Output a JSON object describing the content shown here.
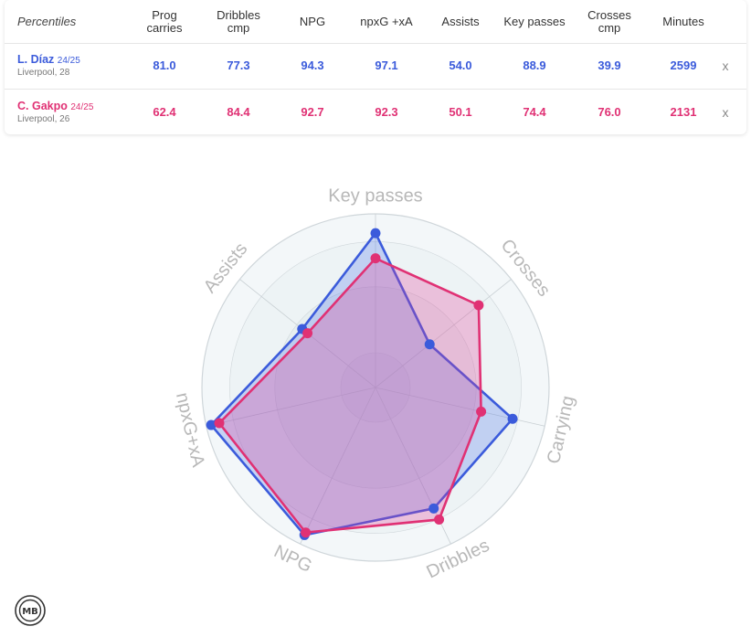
{
  "table": {
    "corner_label": "Percentiles",
    "columns": [
      {
        "line1": "Prog",
        "line2": "carries"
      },
      {
        "line1": "Dribbles",
        "line2": "cmp"
      },
      {
        "line1": "NPG",
        "line2": ""
      },
      {
        "line1": "npxG +xA",
        "line2": ""
      },
      {
        "line1": "Assists",
        "line2": ""
      },
      {
        "line1": "Key passes",
        "line2": ""
      },
      {
        "line1": "Crosses",
        "line2": "cmp"
      },
      {
        "line1": "Minutes",
        "line2": ""
      }
    ],
    "players": [
      {
        "name": "L. Díaz",
        "season": "24/25",
        "team": "Liverpool, 28",
        "values": [
          "81.0",
          "77.3",
          "94.3",
          "97.1",
          "54.0",
          "88.9",
          "39.9",
          "2599"
        ],
        "remove_label": "x",
        "color": "#3b5bdb"
      },
      {
        "name": "C. Gakpo",
        "season": "24/25",
        "team": "Liverpool, 26",
        "values": [
          "62.4",
          "84.4",
          "92.7",
          "92.3",
          "50.1",
          "74.4",
          "76.0",
          "2131"
        ],
        "remove_label": "x",
        "color": "#e03174"
      }
    ]
  },
  "chart_data": {
    "type": "radar",
    "axes": [
      "Key passes",
      "Crosses",
      "Carrying",
      "Dribbles",
      "NPG",
      "npxG+xA",
      "Assists"
    ],
    "range": [
      0,
      100
    ],
    "series": [
      {
        "name": "L. Díaz",
        "color": "#3b5bdb",
        "values": [
          88.9,
          39.9,
          81.0,
          77.3,
          94.3,
          97.1,
          54.0
        ]
      },
      {
        "name": "C. Gakpo",
        "color": "#e03174",
        "values": [
          74.4,
          76.0,
          62.4,
          84.4,
          92.7,
          92.3,
          50.1
        ]
      }
    ]
  },
  "logo": {
    "text": "MB"
  }
}
